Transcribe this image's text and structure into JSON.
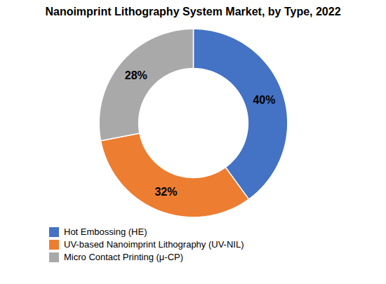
{
  "chart_data": {
    "type": "pie",
    "title": "Nanoimprint Lithography System Market, by Type, 2022",
    "categories": [
      "Hot Embossing (HE)",
      "UV-based Nanoimprint Lithography (UV-NIL)",
      "Micro Contact Printing (μ-CP)"
    ],
    "values": [
      40,
      32,
      28
    ],
    "value_labels": [
      "40%",
      "32%",
      "28%"
    ],
    "colors": [
      "#4472c4",
      "#ed7d31",
      "#a9a9a9"
    ],
    "data_labels": true,
    "legend": "bottom"
  }
}
